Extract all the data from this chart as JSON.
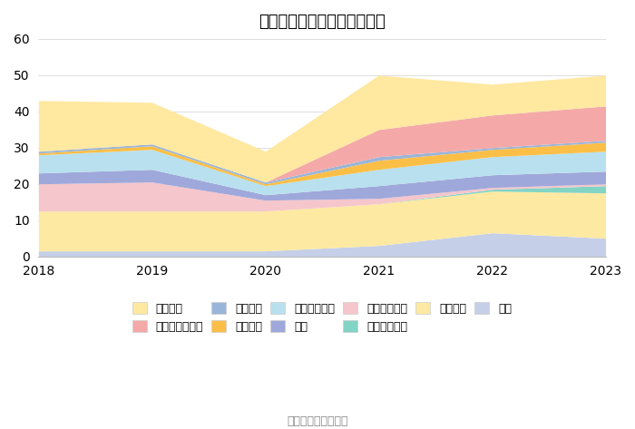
{
  "title": "历年主要资产堆积图（亿元）",
  "years": [
    2018,
    2019,
    2020,
    2021,
    2022,
    2023
  ],
  "series": [
    {
      "name": "其它",
      "color": "#c5cfe8",
      "values": [
        1.5,
        1.5,
        1.5,
        3.0,
        6.5,
        5.0
      ]
    },
    {
      "name": "固定资产",
      "color": "#fde9a2",
      "values": [
        11.0,
        11.0,
        11.0,
        11.5,
        11.5,
        12.5
      ]
    },
    {
      "name": "债权投资合计",
      "color": "#82d4c4",
      "values": [
        0.0,
        0.0,
        0.0,
        0.0,
        0.5,
        2.0
      ]
    },
    {
      "name": "其他流动资产",
      "color": "#f5c6cb",
      "values": [
        7.5,
        8.0,
        3.0,
        1.5,
        0.5,
        0.5
      ]
    },
    {
      "name": "存货",
      "color": "#9fa8da",
      "values": [
        3.0,
        3.5,
        1.5,
        3.5,
        3.5,
        3.5
      ]
    },
    {
      "name": "应收款项融资",
      "color": "#b8e0ee",
      "values": [
        5.0,
        5.5,
        2.5,
        4.5,
        5.0,
        5.5
      ]
    },
    {
      "name": "应收账款",
      "color": "#fbbf47",
      "values": [
        0.5,
        1.0,
        0.5,
        2.5,
        2.0,
        2.5
      ]
    },
    {
      "name": "应收票据",
      "color": "#9ab5d8",
      "values": [
        0.5,
        0.5,
        0.5,
        1.0,
        0.5,
        0.5
      ]
    },
    {
      "name": "交易性金融资产",
      "color": "#f4a9a8",
      "values": [
        0.0,
        0.0,
        0.0,
        7.5,
        9.0,
        9.5
      ]
    },
    {
      "name": "货币资金",
      "color": "#ffe8a0",
      "values": [
        14.0,
        11.5,
        8.5,
        15.0,
        8.5,
        8.5
      ]
    }
  ],
  "ylim": [
    0,
    60
  ],
  "yticks": [
    0,
    10,
    20,
    30,
    40,
    50,
    60
  ],
  "source_text": "数据来源：恒生聚源",
  "background_color": "#ffffff",
  "grid_color": "#dddddd",
  "legend_order": [
    "货币资金",
    "交易性金融资产",
    "应收票据",
    "应收账款",
    "应收款项融资",
    "存货",
    "其他流动资产",
    "债权投资合计",
    "固定资产",
    "其它"
  ]
}
